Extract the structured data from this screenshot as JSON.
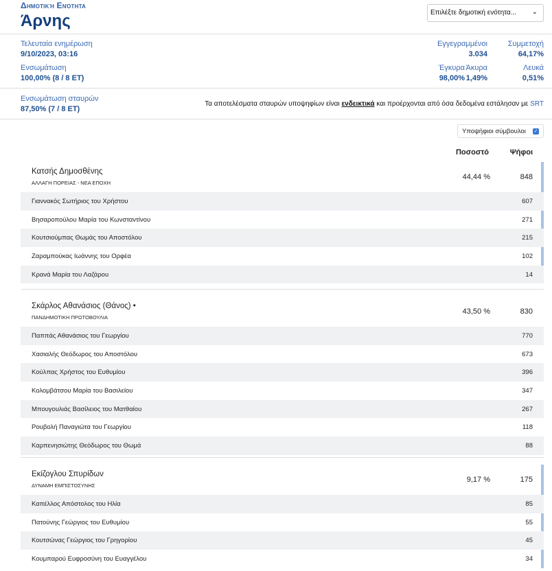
{
  "header": {
    "eyebrow": "Δημοτική Ενότητα",
    "title": "Άρνης",
    "select_placeholder": "Επιλέξτε δημοτική ενότητα..."
  },
  "stats": {
    "last_update_label": "Τελευταία ενημέρωση",
    "last_update": "9/10/2023, 03:16",
    "integration_label": "Ενσωμάτωση",
    "integration": "100,00% (8 / 8 ΕΤ)",
    "registered_label": "Εγγεγραμμένοι",
    "registered": "3.034",
    "turnout_label": "Συμμετοχή",
    "turnout": "64,17%",
    "valid_label": "Έγκυρα",
    "valid": "98,00%",
    "invalid_label": "Άκυρα",
    "invalid": "1,49%",
    "blank_label": "Λευκά",
    "blank": "0,51%",
    "pref_integration_label": "Ενσωμάτωση σταυρών",
    "pref_integration": "87,50% (7 / 8 ΕΤ)"
  },
  "note": {
    "pre": "Τα αποτελέσματα σταυρών υποψηφίων είναι ",
    "bold": "ενδεικτικά",
    "post": " και προέρχονται από όσα δεδομένα εστάλησαν με ",
    "srt": "SRT"
  },
  "toggle": {
    "label": "Υποψήφιοι σύμβουλοι",
    "checked": true
  },
  "columns": {
    "pct": "Ποσοστό",
    "votes": "Ψήφοι"
  },
  "parties": [
    {
      "name": "Κατσής Δημοσθένης",
      "list": "ΑΛΛΑΓΗ ΠΟΡΕΙΑΣ - ΝΕΑ ΕΠΟΧΗ",
      "pct": "44,44 %",
      "votes": "848",
      "candidates": [
        {
          "name": "Γιαννακός Σωτήριος του Χρήστου",
          "votes": "607"
        },
        {
          "name": "Βησαροπούλου Μαρία του Κωνσταντίνου",
          "votes": "271"
        },
        {
          "name": "Κουτσιούμπας Θωμάς του Αποστόλου",
          "votes": "215"
        },
        {
          "name": "Ζαραμπούκας Ιωάννης του Ορφέα",
          "votes": "102"
        },
        {
          "name": "Κρανά Μαρία του Λαζάρου",
          "votes": "14"
        }
      ]
    },
    {
      "name": "Σκάρλος Αθανάσιος (Θάνος) •",
      "list": "ΠΑΝΔΗΜΟΤΙΚΗ ΠΡΩΤΟΒΟΥΛΙΑ",
      "pct": "43,50 %",
      "votes": "830",
      "candidates": [
        {
          "name": "Παππάς Αθανάσιος του Γεωργίου",
          "votes": "770"
        },
        {
          "name": "Χασιαλής Θεόδωρος του Αποστόλου",
          "votes": "673"
        },
        {
          "name": "Κούλπας Χρήστος του Ευθυμίου",
          "votes": "396"
        },
        {
          "name": "Κολομβάτσου Μαρία του Βασιλείου",
          "votes": "347"
        },
        {
          "name": "Μπουγουλιάς Βασίλειος του Ματθαίου",
          "votes": "267"
        },
        {
          "name": "Ρουβολή Παναγιώτα του Γεωργίου",
          "votes": "118"
        },
        {
          "name": "Καρπενησιώτης Θεόδωρος του Θωμά",
          "votes": "88"
        }
      ]
    },
    {
      "name": "Εκίζογλου Σπυρίδων",
      "list": "ΔΥΝΑΜΗ ΕΜΠΙΣΤΟΣΥΝΗΣ",
      "pct": "9,17 %",
      "votes": "175",
      "candidates": [
        {
          "name": "Καπέλλος Απόστολος του Ηλία",
          "votes": "85"
        },
        {
          "name": "Πατούνης Γεώργιος του Ευθυμίου",
          "votes": "55"
        },
        {
          "name": "Κουτσώνας Γεώργιος του Γρηγορίου",
          "votes": "45"
        },
        {
          "name": "Κουμπαρού Ευφροσύνη του Ευαγγέλου",
          "votes": "34"
        }
      ]
    }
  ]
}
